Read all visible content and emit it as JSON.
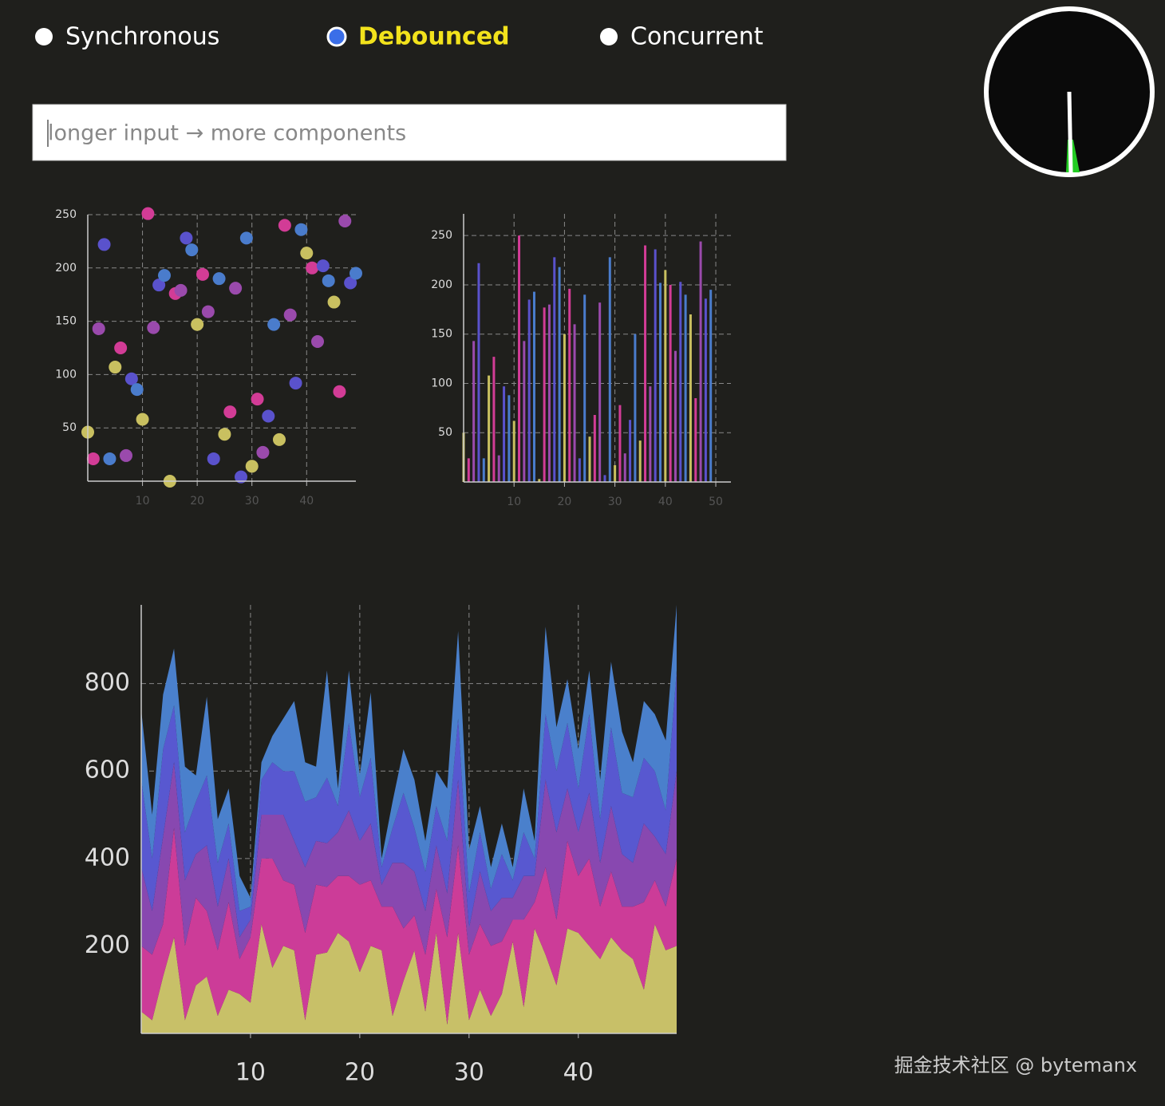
{
  "controls": {
    "options": [
      "Synchronous",
      "Debounced",
      "Concurrent"
    ],
    "selected": 1
  },
  "input": {
    "placeholder": "longer input → more components"
  },
  "watermark": "掘金技术社区 @ bytemanx",
  "chart_data": [
    {
      "type": "scatter",
      "x": [
        0,
        1,
        2,
        3,
        4,
        5,
        6,
        7,
        8,
        9,
        10,
        11,
        12,
        13,
        14,
        15,
        16,
        17,
        18,
        19,
        20,
        21,
        22,
        23,
        24,
        25,
        26,
        27,
        28,
        29,
        30,
        31,
        32,
        33,
        34,
        35,
        36,
        37,
        38,
        39,
        40,
        41,
        42,
        43,
        44,
        45,
        46,
        47,
        48,
        49
      ],
      "values": [
        46,
        21,
        143,
        222,
        21,
        107,
        125,
        24,
        96,
        86,
        58,
        251,
        144,
        184,
        193,
        0,
        176,
        179,
        228,
        217,
        147,
        194,
        159,
        21,
        190,
        44,
        65,
        181,
        4,
        228,
        14,
        77,
        27,
        61,
        147,
        39,
        240,
        156,
        92,
        236,
        214,
        200,
        131,
        202,
        188,
        168,
        84,
        244,
        186,
        195
      ],
      "colors": [
        "#c9c060",
        "#d23c96",
        "#9a4aac",
        "#5a52cc",
        "#4a7ccc"
      ],
      "xlim": [
        0,
        49
      ],
      "ylim": [
        0,
        250
      ],
      "xticks": [
        10,
        20,
        30,
        40
      ],
      "yticks": [
        50,
        100,
        150,
        200,
        250
      ],
      "grid": true
    },
    {
      "type": "bar",
      "x": [
        0,
        1,
        2,
        3,
        4,
        5,
        6,
        7,
        8,
        9,
        10,
        11,
        12,
        13,
        14,
        15,
        16,
        17,
        18,
        19,
        20,
        21,
        22,
        23,
        24,
        25,
        26,
        27,
        28,
        29,
        30,
        31,
        32,
        33,
        34,
        35,
        36,
        37,
        38,
        39,
        40,
        41,
        42,
        43,
        44,
        45,
        46,
        47,
        48,
        49
      ],
      "values": [
        50,
        24,
        143,
        222,
        24,
        108,
        127,
        27,
        97,
        88,
        62,
        250,
        143,
        185,
        193,
        3,
        177,
        180,
        228,
        218,
        150,
        196,
        160,
        24,
        190,
        46,
        68,
        182,
        7,
        228,
        17,
        78,
        29,
        63,
        150,
        42,
        240,
        97,
        236,
        202,
        215,
        200,
        133,
        203,
        190,
        170,
        85,
        244,
        186,
        195
      ],
      "colors": [
        "#c9c060",
        "#d23c96",
        "#9a4aac",
        "#5a52cc",
        "#4a7ccc"
      ],
      "xlim": [
        0,
        53
      ],
      "ylim": [
        0,
        272
      ],
      "xticks": [
        10,
        20,
        30,
        40,
        50
      ],
      "yticks": [
        50,
        100,
        150,
        200,
        250
      ],
      "grid": true
    },
    {
      "type": "area",
      "stacked": true,
      "x": [
        0,
        1,
        2,
        3,
        4,
        5,
        6,
        7,
        8,
        9,
        10,
        11,
        12,
        13,
        14,
        15,
        16,
        17,
        18,
        19,
        20,
        21,
        22,
        23,
        24,
        25,
        26,
        27,
        28,
        29,
        30,
        31,
        32,
        33,
        34,
        35,
        36,
        37,
        38,
        39,
        40,
        41,
        42,
        43,
        44,
        45,
        46,
        47,
        48,
        49
      ],
      "series": [
        {
          "color": "#c8c068",
          "values": [
            50,
            30,
            130,
            220,
            30,
            110,
            130,
            40,
            100,
            90,
            70,
            250,
            150,
            200,
            190,
            30,
            180,
            185,
            230,
            210,
            140,
            200,
            190,
            40,
            120,
            190,
            50,
            230,
            20,
            230,
            30,
            100,
            40,
            90,
            210,
            60,
            240,
            180,
            110,
            240,
            230,
            200,
            170,
            220,
            190,
            170,
            100,
            250,
            190,
            200
          ]
        },
        {
          "color": "#cc3c98",
          "values": [
            150,
            150,
            120,
            250,
            170,
            200,
            150,
            150,
            200,
            80,
            150,
            150,
            250,
            150,
            150,
            200,
            160,
            150,
            130,
            150,
            200,
            150,
            100,
            250,
            120,
            80,
            130,
            100,
            200,
            200,
            150,
            150,
            160,
            120,
            50,
            200,
            60,
            200,
            150,
            200,
            130,
            200,
            120,
            150,
            100,
            120,
            200,
            100,
            100,
            200
          ]
        },
        {
          "color": "#8848b0",
          "values": [
            180,
            100,
            200,
            150,
            150,
            100,
            150,
            100,
            100,
            50,
            40,
            100,
            100,
            150,
            100,
            150,
            100,
            100,
            100,
            150,
            100,
            130,
            50,
            100,
            150,
            100,
            100,
            100,
            100,
            150,
            60,
            120,
            80,
            100,
            50,
            100,
            60,
            200,
            200,
            120,
            100,
            150,
            100,
            150,
            120,
            100,
            180,
            100,
            120,
            200
          ]
        },
        {
          "color": "#5858d0",
          "values": [
            200,
            120,
            200,
            130,
            110,
            120,
            160,
            100,
            80,
            60,
            30,
            80,
            120,
            100,
            160,
            150,
            100,
            150,
            60,
            200,
            100,
            150,
            40,
            80,
            160,
            100,
            90,
            90,
            120,
            140,
            80,
            90,
            50,
            100,
            40,
            100,
            40,
            150,
            140,
            150,
            100,
            180,
            100,
            180,
            140,
            150,
            150,
            150,
            100,
            230
          ]
        },
        {
          "color": "#4a80cc",
          "values": [
            160,
            100,
            125,
            130,
            150,
            60,
            180,
            100,
            80,
            80,
            20,
            40,
            60,
            120,
            160,
            90,
            70,
            245,
            40,
            120,
            50,
            150,
            20,
            60,
            100,
            110,
            70,
            80,
            120,
            200,
            100,
            60,
            50,
            70,
            30,
            100,
            40,
            200,
            100,
            100,
            90,
            100,
            90,
            150,
            140,
            80,
            130,
            130,
            160,
            150
          ]
        }
      ],
      "xlim": [
        0,
        49
      ],
      "ylim": [
        0,
        980
      ],
      "xticks": [
        10,
        20,
        30,
        40
      ],
      "yticks": [
        200,
        400,
        600,
        800
      ],
      "grid": true
    }
  ]
}
